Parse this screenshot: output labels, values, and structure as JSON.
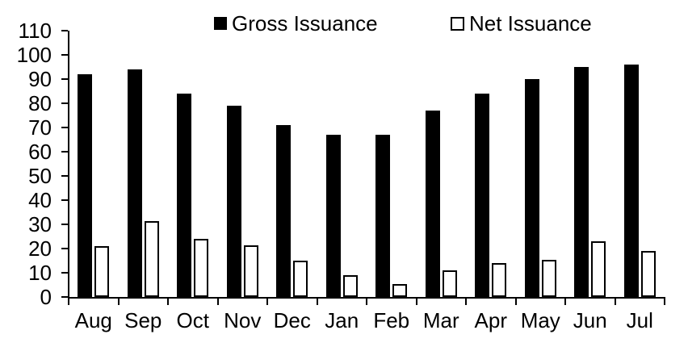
{
  "chart_data": {
    "type": "bar",
    "title": "",
    "xlabel": "",
    "ylabel": "",
    "categories": [
      "Aug",
      "Sep",
      "Oct",
      "Nov",
      "Dec",
      "Jan",
      "Feb",
      "Mar",
      "Apr",
      "May",
      "Jun",
      "Jul"
    ],
    "series": [
      {
        "name": "Gross Issuance",
        "values": [
          92,
          94,
          84,
          79,
          71,
          67,
          67,
          77,
          84,
          90,
          95,
          96
        ],
        "fill": "#000000"
      },
      {
        "name": "Net Issuance",
        "values": [
          21,
          31.5,
          24,
          21.5,
          15,
          9,
          5.5,
          11,
          14,
          15.5,
          23,
          19
        ],
        "fill": "#ffffff",
        "stroke": "#000000"
      }
    ],
    "ylim": [
      0,
      110
    ],
    "ytick_step": 10,
    "ytick_labels": [
      "0",
      "10",
      "20",
      "30",
      "40",
      "50",
      "60",
      "70",
      "80",
      "90",
      "100",
      "110"
    ],
    "grid": false,
    "legend_position": "top"
  },
  "legend": {
    "items": [
      {
        "label": "Gross Issuance",
        "swatch_icon": "filled-black-square"
      },
      {
        "label": "Net Issuance",
        "swatch_icon": "outlined-white-square"
      }
    ]
  },
  "colors": {
    "foreground": "#000000",
    "background": "#ffffff",
    "gross_bar_fill": "#000000",
    "net_bar_fill": "#ffffff",
    "net_bar_border": "#000000",
    "axis": "#000000"
  }
}
